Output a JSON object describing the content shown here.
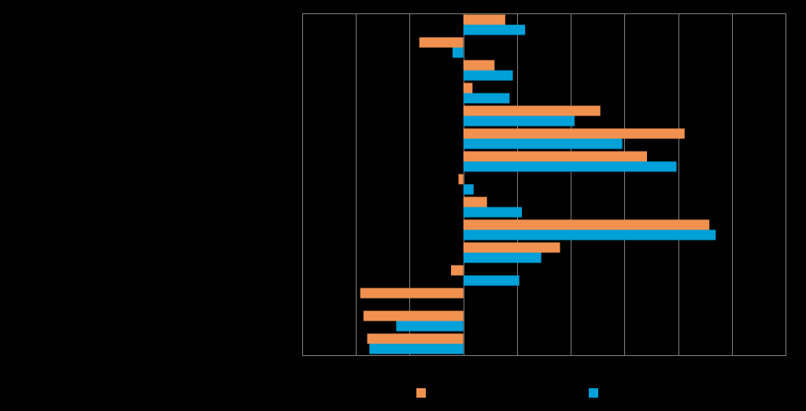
{
  "chart_data": {
    "type": "bar",
    "orientation": "horizontal",
    "title": "",
    "xlabel": "",
    "ylabel": "",
    "xlim": [
      -3,
      6
    ],
    "x_gridlines": [
      -2,
      -1,
      0,
      1,
      2,
      3,
      4,
      5
    ],
    "grid": "vertical",
    "legend_position": "bottom",
    "categories": [
      "",
      "",
      "",
      "",
      "",
      "",
      "",
      "",
      "",
      "",
      "",
      "",
      "",
      "",
      ""
    ],
    "series": [
      {
        "name": "",
        "color": "#F0914F",
        "values": [
          0.78,
          -0.82,
          0.58,
          0.17,
          2.55,
          4.12,
          3.42,
          -0.09,
          0.44,
          4.58,
          1.8,
          -0.23,
          -1.92,
          -1.86,
          -1.79
        ]
      },
      {
        "name": "",
        "color": "#00A0D8",
        "values": [
          1.15,
          -0.2,
          0.92,
          0.86,
          2.07,
          2.96,
          3.97,
          0.19,
          1.09,
          4.7,
          1.45,
          1.04,
          0.0,
          -1.25,
          -1.75
        ]
      }
    ]
  },
  "style": {
    "background": "#000000",
    "axis_color": "#808080",
    "grid_color": "#7F7F7F"
  }
}
